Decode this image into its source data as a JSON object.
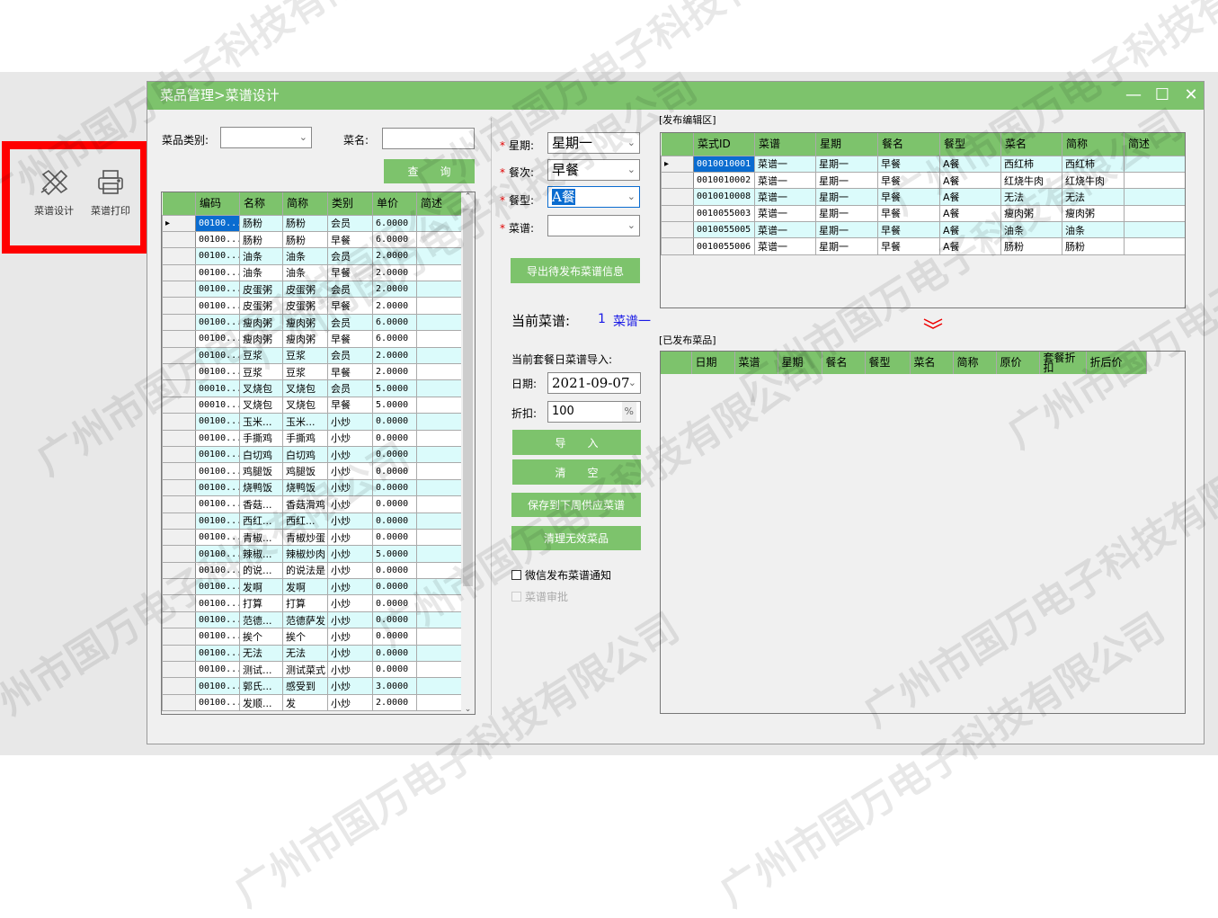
{
  "watermark": "广州市国万电子科技有限公司",
  "sidebar": {
    "items": [
      {
        "label": "菜谱设计",
        "icon": "pencil-ruler-icon"
      },
      {
        "label": "菜谱打印",
        "icon": "printer-icon"
      }
    ]
  },
  "window": {
    "title": "菜品管理>菜谱设计",
    "controls": {
      "minimize": "—",
      "maximize": "☐",
      "close": "✕"
    }
  },
  "search": {
    "category_label": "菜品类别:",
    "category_value": "",
    "name_label": "菜名:",
    "name_value": "",
    "query_button": "查　　询"
  },
  "left_grid": {
    "columns": [
      "编码",
      "名称",
      "简称",
      "类别",
      "单价",
      "简述"
    ],
    "rows": [
      [
        "00100...",
        "肠粉",
        "肠粉",
        "会员",
        "6.0000",
        ""
      ],
      [
        "00100...",
        "肠粉",
        "肠粉",
        "早餐",
        "6.0000",
        ""
      ],
      [
        "00100...",
        "油条",
        "油条",
        "会员",
        "2.0000",
        ""
      ],
      [
        "00100...",
        "油条",
        "油条",
        "早餐",
        "2.0000",
        ""
      ],
      [
        "00100...",
        "皮蛋粥",
        "皮蛋粥",
        "会员",
        "2.0000",
        ""
      ],
      [
        "00100...",
        "皮蛋粥",
        "皮蛋粥",
        "早餐",
        "2.0000",
        ""
      ],
      [
        "00100...",
        "瘦肉粥",
        "瘦肉粥",
        "会员",
        "6.0000",
        ""
      ],
      [
        "00100...",
        "瘦肉粥",
        "瘦肉粥",
        "早餐",
        "6.0000",
        ""
      ],
      [
        "00100...",
        "豆浆",
        "豆浆",
        "会员",
        "2.0000",
        ""
      ],
      [
        "00100...",
        "豆浆",
        "豆浆",
        "早餐",
        "2.0000",
        ""
      ],
      [
        "00010...",
        "叉烧包",
        "叉烧包",
        "会员",
        "5.0000",
        ""
      ],
      [
        "00010...",
        "叉烧包",
        "叉烧包",
        "早餐",
        "5.0000",
        ""
      ],
      [
        "00100...",
        "玉米...",
        "玉米...",
        "小炒",
        "0.0000",
        ""
      ],
      [
        "00100...",
        "手撕鸡",
        "手撕鸡",
        "小炒",
        "0.0000",
        ""
      ],
      [
        "00100...",
        "白切鸡",
        "白切鸡",
        "小炒",
        "0.0000",
        ""
      ],
      [
        "00100...",
        "鸡腿饭",
        "鸡腿饭",
        "小炒",
        "0.0000",
        ""
      ],
      [
        "00100...",
        "烧鸭饭",
        "烧鸭饭",
        "小炒",
        "0.0000",
        ""
      ],
      [
        "00100...",
        "香菇...",
        "香菇滑鸡",
        "小炒",
        "0.0000",
        ""
      ],
      [
        "00100...",
        "西红...",
        "西红...",
        "小炒",
        "0.0000",
        ""
      ],
      [
        "00100...",
        "青椒...",
        "青椒炒蛋",
        "小炒",
        "0.0000",
        ""
      ],
      [
        "00100...",
        "辣椒...",
        "辣椒炒肉",
        "小炒",
        "5.0000",
        ""
      ],
      [
        "00100...",
        "的说...",
        "的说法是",
        "小炒",
        "0.0000",
        ""
      ],
      [
        "00100...",
        "发啊",
        "发啊",
        "小炒",
        "0.0000",
        ""
      ],
      [
        "00100...",
        "打算",
        "打算",
        "小炒",
        "0.0000",
        ""
      ],
      [
        "00100...",
        "范德...",
        "范德萨发",
        "小炒",
        "0.0000",
        ""
      ],
      [
        "00100...",
        "挨个",
        "挨个",
        "小炒",
        "0.0000",
        ""
      ],
      [
        "00100...",
        "无法",
        "无法",
        "小炒",
        "0.0000",
        ""
      ],
      [
        "00100...",
        "测试...",
        "测试菜式",
        "小炒",
        "0.0000",
        ""
      ],
      [
        "00100...",
        "郭氏...",
        "感受到",
        "小炒",
        "3.0000",
        ""
      ],
      [
        "00100...",
        "发顺...",
        "发",
        "小炒",
        "2.0000",
        ""
      ]
    ]
  },
  "form": {
    "weekday_label": "星期:",
    "weekday_value": "星期一",
    "meal_label": "餐次:",
    "meal_value": "早餐",
    "type_label": "餐型:",
    "type_value": "A餐",
    "menu_label": "菜谱:",
    "menu_value": "",
    "export_button": "导出待发布菜谱信息",
    "current_menu_label": "当前菜谱:",
    "current_menu_no": "1",
    "current_menu_name": "菜谱一",
    "import_label": "当前套餐日菜谱导入:",
    "date_label": "日期:",
    "date_value": "2021-09-07",
    "discount_label": "折扣:",
    "discount_value": "100",
    "discount_unit": "%",
    "import_button": "导　　入",
    "clear_button": "清　　空",
    "save_button": "保存到下周供应菜谱",
    "cleanup_button": "清理无效菜品",
    "wechat_checkbox": "微信发布菜谱通知",
    "approve_checkbox": "菜谱审批",
    "wechat_checked": false,
    "approve_checked": false
  },
  "edit_area": {
    "title": "[发布编辑区]",
    "columns": [
      "菜式ID",
      "菜谱",
      "星期",
      "餐名",
      "餐型",
      "菜名",
      "简称",
      "简述"
    ],
    "rows": [
      [
        "0010010001",
        "菜谱一",
        "星期一",
        "早餐",
        "A餐",
        "西红柿",
        "西红柿",
        ""
      ],
      [
        "0010010002",
        "菜谱一",
        "星期一",
        "早餐",
        "A餐",
        "红烧牛肉",
        "红烧牛肉",
        ""
      ],
      [
        "0010010008",
        "菜谱一",
        "星期一",
        "早餐",
        "A餐",
        "无法",
        "无法",
        ""
      ],
      [
        "0010055003",
        "菜谱一",
        "星期一",
        "早餐",
        "A餐",
        "瘦肉粥",
        "瘦肉粥",
        ""
      ],
      [
        "0010055005",
        "菜谱一",
        "星期一",
        "早餐",
        "A餐",
        "油条",
        "油条",
        ""
      ],
      [
        "0010055006",
        "菜谱一",
        "星期一",
        "早餐",
        "A餐",
        "肠粉",
        "肠粉",
        ""
      ]
    ]
  },
  "published": {
    "title": "[已发布菜品]",
    "columns": [
      "日期",
      "菜谱",
      "星期",
      "餐名",
      "餐型",
      "菜名",
      "简称",
      "原价",
      "套餐折扣",
      "折后价"
    ]
  },
  "colors": {
    "accent": "#7dc36c",
    "alt_row": "#dbfbfb",
    "highlight": "#ff0000",
    "selection": "#0a6cd0"
  }
}
